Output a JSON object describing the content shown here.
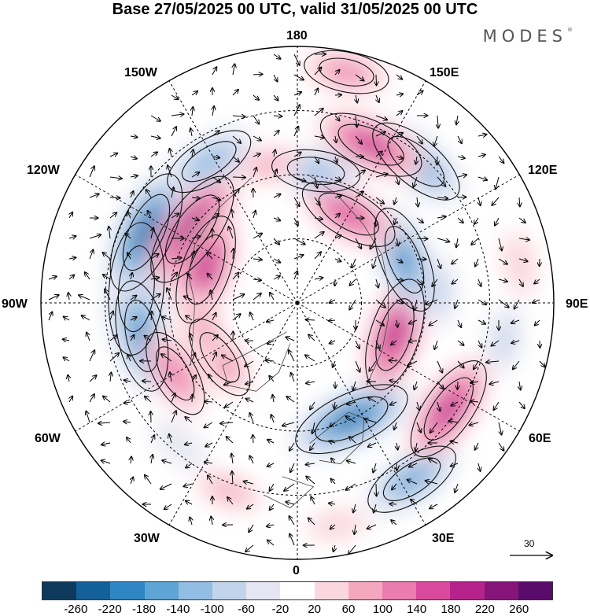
{
  "title": "Base 27/05/2025 00 UTC, valid 31/05/2025 00 UTC",
  "brand": "MODES",
  "brand_mark": "®",
  "longitude_labels": {
    "n180": "180",
    "w150": "150W",
    "e150": "150E",
    "w120": "120W",
    "e120": "120E",
    "w90": "90W",
    "e90": "90E",
    "w60": "60W",
    "e60": "60E",
    "w30": "30W",
    "e30": "30E",
    "s0": "0"
  },
  "reference_vector": {
    "value": "30"
  },
  "colorbar": {
    "colors": [
      "#0d3a5c",
      "#14609a",
      "#2f86c2",
      "#5ea4d4",
      "#93bde2",
      "#c2d4ec",
      "#e6e6f2",
      "#ffffff",
      "#fad7de",
      "#f4a8c0",
      "#ea7cae",
      "#d94a9c",
      "#b5228a",
      "#86157a",
      "#5a0c6a"
    ],
    "ticks": [
      "-260",
      "-220",
      "-180",
      "-140",
      "-100",
      "-60",
      "-20",
      "20",
      "60",
      "100",
      "140",
      "180",
      "220",
      "260"
    ]
  },
  "anomalies": [
    {
      "lon": -95,
      "r": 0.63,
      "value": -270
    },
    {
      "lon": -115,
      "r": 0.65,
      "value": -250
    },
    {
      "lon": -78,
      "r": 0.62,
      "value": -200
    },
    {
      "lon": -125,
      "r": 0.5,
      "value": 240
    },
    {
      "lon": -110,
      "r": 0.38,
      "value": 200
    },
    {
      "lon": -60,
      "r": 0.55,
      "value": 130
    },
    {
      "lon": -55,
      "r": 0.37,
      "value": 120
    },
    {
      "lon": -75,
      "r": 0.38,
      "value": 90
    },
    {
      "lon": 25,
      "r": 0.5,
      "value": -230
    },
    {
      "lon": 33,
      "r": 0.82,
      "value": -160
    },
    {
      "lon": 72,
      "r": 0.4,
      "value": 210
    },
    {
      "lon": 55,
      "r": 0.72,
      "value": 200
    },
    {
      "lon": 112,
      "r": 0.45,
      "value": -190
    },
    {
      "lon": 140,
      "r": 0.72,
      "value": -180
    },
    {
      "lon": 155,
      "r": 0.68,
      "value": 190
    },
    {
      "lon": 150,
      "r": 0.4,
      "value": 170
    },
    {
      "lon": 172,
      "r": 0.52,
      "value": -120
    },
    {
      "lon": -148,
      "r": 0.65,
      "value": -140
    },
    {
      "lon": -168,
      "r": 0.55,
      "value": 70
    },
    {
      "lon": 168,
      "r": 0.92,
      "value": 110
    },
    {
      "lon": -20,
      "r": 0.78,
      "value": 70
    },
    {
      "lon": 10,
      "r": 0.88,
      "value": 50
    },
    {
      "lon": -40,
      "r": 0.72,
      "value": -60
    },
    {
      "lon": 95,
      "r": 0.55,
      "value": -80
    },
    {
      "lon": 100,
      "r": 0.88,
      "value": 60
    },
    {
      "lon": 80,
      "r": 0.82,
      "value": -70
    }
  ]
}
